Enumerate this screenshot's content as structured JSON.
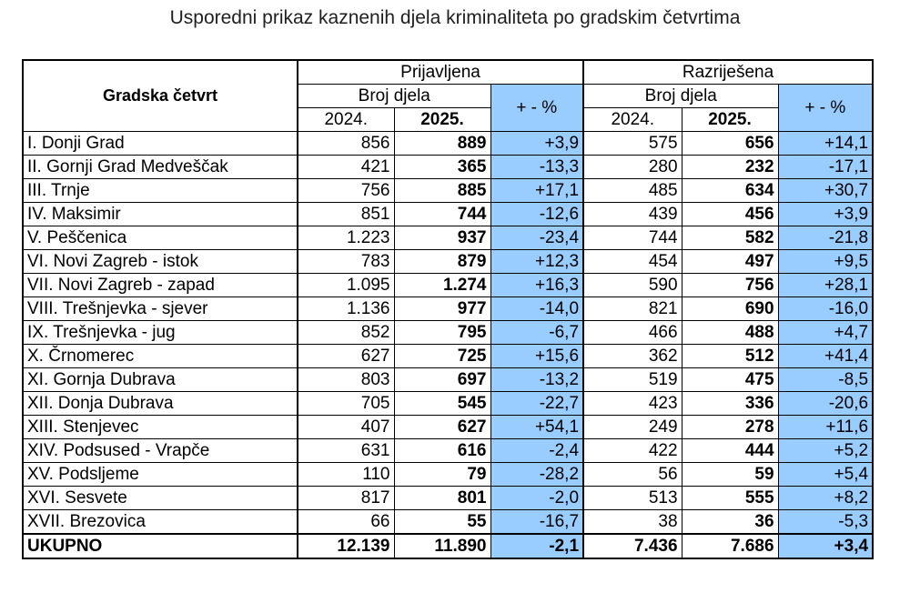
{
  "title": "Usporedni prikaz kaznenih djela kriminaliteta po gradskim četvrtima",
  "header": {
    "district": "Gradska četvrt",
    "reported": "Prijavljena",
    "solved": "Razriješena",
    "count_label": "Broj djela",
    "change_label": "+ - %",
    "year1": "2024.",
    "year2": "2025."
  },
  "rows": [
    {
      "name": "I. Donji Grad",
      "r2024": "856",
      "r2025": "889",
      "rpct": "+3,9",
      "s2024": "575",
      "s2025": "656",
      "spct": "+14,1"
    },
    {
      "name": "II. Gornji Grad Medveščak",
      "r2024": "421",
      "r2025": "365",
      "rpct": "-13,3",
      "s2024": "280",
      "s2025": "232",
      "spct": "-17,1"
    },
    {
      "name": "III. Trnje",
      "r2024": "756",
      "r2025": "885",
      "rpct": "+17,1",
      "s2024": "485",
      "s2025": "634",
      "spct": "+30,7"
    },
    {
      "name": "IV. Maksimir",
      "r2024": "851",
      "r2025": "744",
      "rpct": "-12,6",
      "s2024": "439",
      "s2025": "456",
      "spct": "+3,9"
    },
    {
      "name": "V. Peščenica",
      "r2024": "1.223",
      "r2025": "937",
      "rpct": "-23,4",
      "s2024": "744",
      "s2025": "582",
      "spct": "-21,8"
    },
    {
      "name": "VI. Novi Zagreb - istok",
      "r2024": "783",
      "r2025": "879",
      "rpct": "+12,3",
      "s2024": "454",
      "s2025": "497",
      "spct": "+9,5"
    },
    {
      "name": "VII. Novi Zagreb - zapad",
      "r2024": "1.095",
      "r2025": "1.274",
      "rpct": "+16,3",
      "s2024": "590",
      "s2025": "756",
      "spct": "+28,1"
    },
    {
      "name": "VIII. Trešnjevka - sjever",
      "r2024": "1.136",
      "r2025": "977",
      "rpct": "-14,0",
      "s2024": "821",
      "s2025": "690",
      "spct": "-16,0"
    },
    {
      "name": "IX. Trešnjevka - jug",
      "r2024": "852",
      "r2025": "795",
      "rpct": "-6,7",
      "s2024": "466",
      "s2025": "488",
      "spct": "+4,7"
    },
    {
      "name": "X. Črnomerec",
      "r2024": "627",
      "r2025": "725",
      "rpct": "+15,6",
      "s2024": "362",
      "s2025": "512",
      "spct": "+41,4"
    },
    {
      "name": "XI. Gornja Dubrava",
      "r2024": "803",
      "r2025": "697",
      "rpct": "-13,2",
      "s2024": "519",
      "s2025": "475",
      "spct": "-8,5"
    },
    {
      "name": "XII. Donja Dubrava",
      "r2024": "705",
      "r2025": "545",
      "rpct": "-22,7",
      "s2024": "423",
      "s2025": "336",
      "spct": "-20,6"
    },
    {
      "name": "XIII. Stenjevec",
      "r2024": "407",
      "r2025": "627",
      "rpct": "+54,1",
      "s2024": "249",
      "s2025": "278",
      "spct": "+11,6"
    },
    {
      "name": "XIV. Podsused - Vrapče",
      "r2024": "631",
      "r2025": "616",
      "rpct": "-2,4",
      "s2024": "422",
      "s2025": "444",
      "spct": "+5,2"
    },
    {
      "name": "XV. Podsljeme",
      "r2024": "110",
      "r2025": "79",
      "rpct": "-28,2",
      "s2024": "56",
      "s2025": "59",
      "spct": "+5,4"
    },
    {
      "name": "XVI. Sesvete",
      "r2024": "817",
      "r2025": "801",
      "rpct": "-2,0",
      "s2024": "513",
      "s2025": "555",
      "spct": "+8,2"
    },
    {
      "name": "XVII. Brezovica",
      "r2024": "66",
      "r2025": "55",
      "rpct": "-16,7",
      "s2024": "38",
      "s2025": "36",
      "spct": "-5,3"
    }
  ],
  "total": {
    "name": "UKUPNO",
    "r2024": "12.139",
    "r2025": "11.890",
    "rpct": "-2,1",
    "s2024": "7.436",
    "s2025": "7.686",
    "spct": "+3,4"
  },
  "colors": {
    "highlight": "#99ccff"
  }
}
